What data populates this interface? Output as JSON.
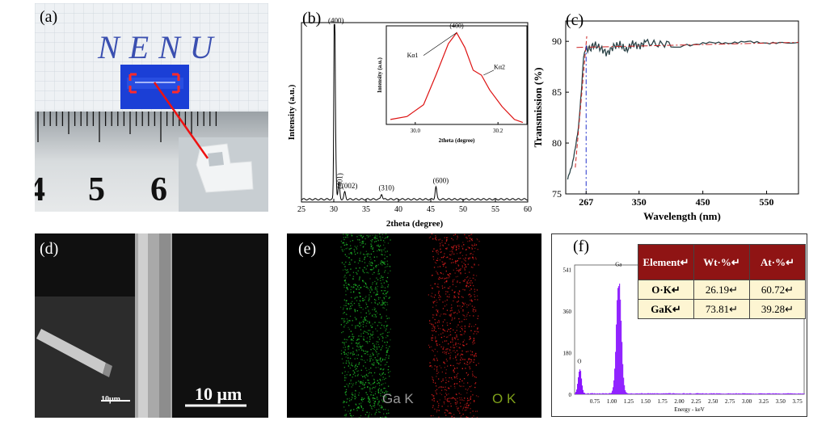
{
  "panel_labels": {
    "a": "(a)",
    "b": "(b)",
    "c": "(c)",
    "d": "(d)",
    "e": "(e)",
    "f": "(f)"
  },
  "photo_a": {
    "handwriting": "NENU",
    "ruler_numbers": [
      "4",
      "5",
      "6"
    ]
  },
  "chart_data": [
    {
      "id": "b",
      "type": "line",
      "title": "",
      "xlabel": "2theta (degree)",
      "ylabel": "Intensity (a.u.)",
      "xlim": [
        25,
        60
      ],
      "xticks": [
        25,
        30,
        35,
        40,
        45,
        50,
        55,
        60
      ],
      "peaks": [
        {
          "x": 30.1,
          "y": 0.97,
          "label": "(400)"
        },
        {
          "x": 30.2,
          "y": 0.43,
          "label": ""
        },
        {
          "x": 30.8,
          "y": 0.09,
          "label": "(401)"
        },
        {
          "x": 31.7,
          "y": 0.04,
          "label": "(002)"
        },
        {
          "x": 37.4,
          "y": 0.03,
          "label": "(310)"
        },
        {
          "x": 45.8,
          "y": 0.07,
          "label": "(600)"
        }
      ],
      "inset": {
        "xlabel": "2theta (degree)",
        "ylabel": "Intensity (a.u.)",
        "xlim": [
          29.93,
          30.27
        ],
        "xticks": [
          30.0,
          30.2
        ],
        "x": [
          29.94,
          29.98,
          30.02,
          30.05,
          30.08,
          30.1,
          30.12,
          30.14,
          30.16,
          30.18,
          30.21,
          30.24,
          30.26
        ],
        "y": [
          0.05,
          0.08,
          0.2,
          0.5,
          0.82,
          0.93,
          0.78,
          0.55,
          0.5,
          0.35,
          0.18,
          0.05,
          0.02
        ],
        "annotations": [
          "(400)",
          "Kα1",
          "Kα2"
        ]
      }
    },
    {
      "id": "c",
      "type": "line",
      "xlabel": "Wavelength (nm)",
      "ylabel": "Transmission (%)",
      "xlim": [
        235,
        600
      ],
      "ylim": [
        75,
        92
      ],
      "xticks": [
        267,
        350,
        450,
        550
      ],
      "yticks": [
        75,
        80,
        85,
        90
      ],
      "x": [
        238,
        245,
        250,
        255,
        260,
        263,
        267,
        272,
        280,
        290,
        300,
        310,
        320,
        330,
        340,
        350,
        360,
        380,
        400,
        430,
        460,
        490,
        520,
        550,
        580,
        600
      ],
      "y": [
        76.5,
        77.8,
        79.5,
        81.5,
        85.5,
        88.5,
        89.4,
        89.2,
        89.7,
        89.3,
        88.8,
        89.5,
        89.7,
        89.1,
        89.8,
        89.5,
        89.9,
        89.7,
        89.8,
        89.6,
        89.9,
        89.8,
        90.0,
        89.8,
        89.9,
        89.9
      ],
      "edge_marker": 267
    },
    {
      "id": "f",
      "type": "bar",
      "xlabel": "Energy - keV",
      "xticks": [
        "0.75",
        "1.00",
        "1.25",
        "1.50",
        "1.75",
        "2.00",
        "2.25",
        "2.50",
        "2.75",
        "3.00",
        "3.25",
        "3.50",
        "3.75"
      ],
      "ytick_labels": [
        "0",
        "180",
        "360",
        "541"
      ],
      "xlim": [
        0.45,
        3.85
      ],
      "ylim": [
        0,
        560
      ],
      "peaks": [
        {
          "element": "O",
          "x": 0.52,
          "y": 120
        },
        {
          "element": "Ga",
          "x": 1.1,
          "y": 541
        }
      ]
    }
  ],
  "sem_d": {
    "inset_scale": "10μm",
    "main_scale": "10 μm"
  },
  "eds_map_e": {
    "ga_label": "Ga K",
    "o_label": "O K"
  },
  "element_table": {
    "headers": [
      "Element↵",
      "Wt·%↵",
      "At·%↵"
    ],
    "rows": [
      [
        "O·K↵",
        "26.19↵",
        "60.72↵"
      ],
      [
        "GaK↵",
        "73.81↵",
        "39.28↵"
      ]
    ]
  }
}
